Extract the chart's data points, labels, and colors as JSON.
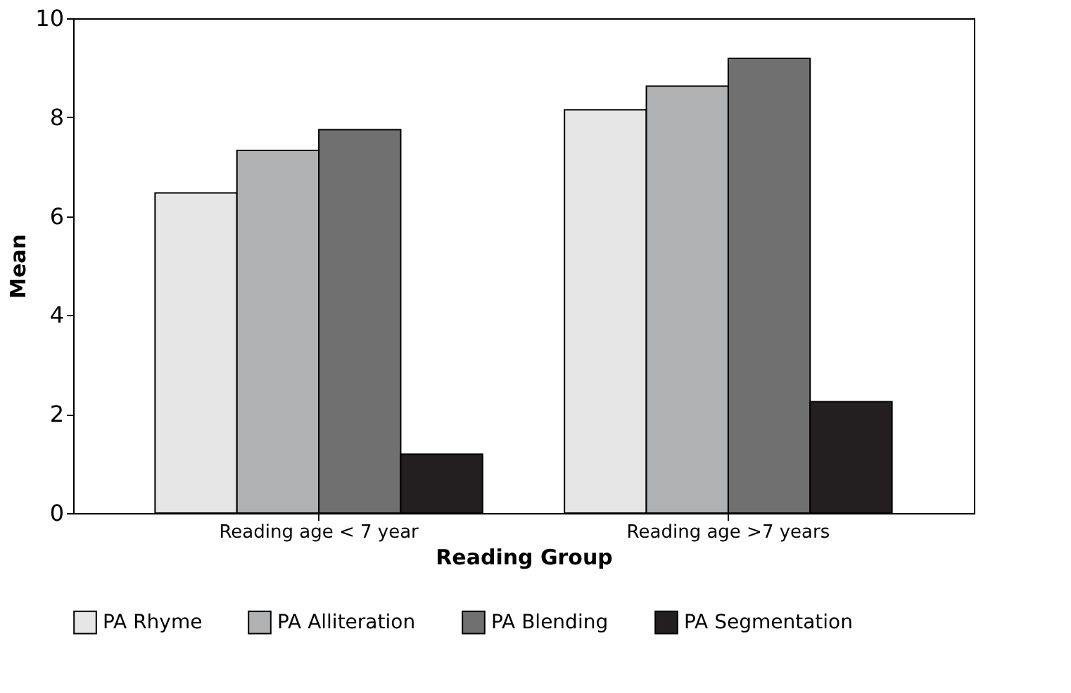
{
  "chart_data": {
    "type": "bar",
    "xlabel": "Reading Group",
    "ylabel": "Mean",
    "categories": [
      "Reading age < 7 year",
      "Reading age >7 years"
    ],
    "series": [
      {
        "name": "PA Rhyme",
        "color": "#e6e6e6",
        "values": [
          6.47,
          8.15
        ]
      },
      {
        "name": "PA Alliteration",
        "color": "#b0b1b3",
        "values": [
          7.33,
          8.63
        ]
      },
      {
        "name": "PA Blending",
        "color": "#707070",
        "values": [
          7.75,
          9.19
        ]
      },
      {
        "name": "PA Segmentation",
        "color": "#231f20",
        "values": [
          1.19,
          2.25
        ]
      }
    ],
    "ylim": [
      0,
      10
    ],
    "yticks": [
      0,
      2,
      4,
      6,
      8,
      10
    ],
    "grid": false,
    "legend": "bottom"
  }
}
